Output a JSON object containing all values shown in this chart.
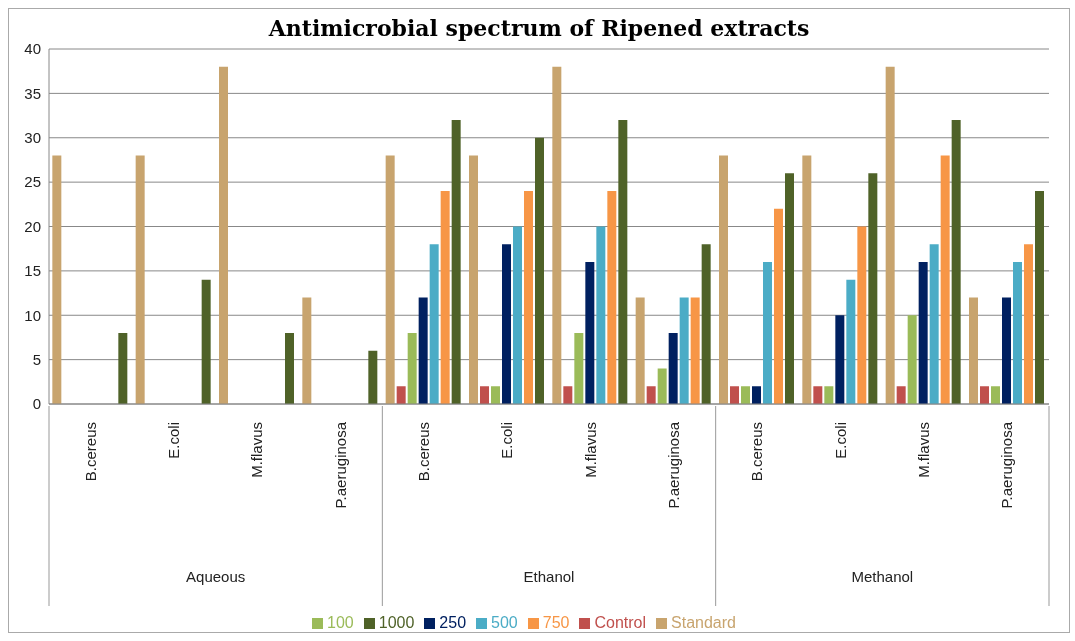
{
  "chart_data": {
    "type": "bar",
    "title": "Antimicrobial spectrum of Ripened extracts",
    "categories": [
      "B.cereus",
      "E.coli",
      "M.flavus",
      "P.aeruginosa",
      "B.cereus",
      "E.coli",
      "M.flavus",
      "P.aeruginosa",
      "B.cereus",
      "E.coli",
      "M.flavus",
      "P.aeruginosa"
    ],
    "annotations": [
      "Aqueous",
      "Ethanol",
      "Methanol"
    ],
    "series": [
      {
        "name": "Standard",
        "color": "#c8a46e",
        "values": [
          28,
          28,
          38,
          12,
          28,
          28,
          38,
          12,
          28,
          28,
          38,
          12
        ]
      },
      {
        "name": "Control",
        "color": "#c0504d",
        "values": [
          0,
          0,
          0,
          0,
          2,
          2,
          2,
          2,
          2,
          2,
          2,
          2
        ]
      },
      {
        "name": "100",
        "color": "#9bbb59",
        "values": [
          0,
          0,
          0,
          0,
          8,
          2,
          8,
          4,
          2,
          2,
          10,
          2
        ]
      },
      {
        "name": "250",
        "color": "#002060",
        "values": [
          0,
          0,
          0,
          0,
          12,
          18,
          16,
          8,
          2,
          10,
          16,
          12
        ]
      },
      {
        "name": "500",
        "color": "#4bacc6",
        "values": [
          0,
          0,
          0,
          0,
          18,
          20,
          20,
          12,
          16,
          14,
          18,
          16
        ]
      },
      {
        "name": "750",
        "color": "#f79646",
        "values": [
          0,
          0,
          0,
          0,
          24,
          24,
          24,
          12,
          22,
          20,
          28,
          18
        ]
      },
      {
        "name": "1000",
        "color": "#4f6228",
        "values": [
          8,
          14,
          8,
          6,
          32,
          30,
          32,
          18,
          26,
          26,
          32,
          24
        ]
      }
    ],
    "ylim": [
      0,
      40
    ],
    "yticks": [
      0,
      5,
      10,
      15,
      20,
      25,
      30,
      35,
      40
    ],
    "grid": "y",
    "legend": "bottom"
  }
}
